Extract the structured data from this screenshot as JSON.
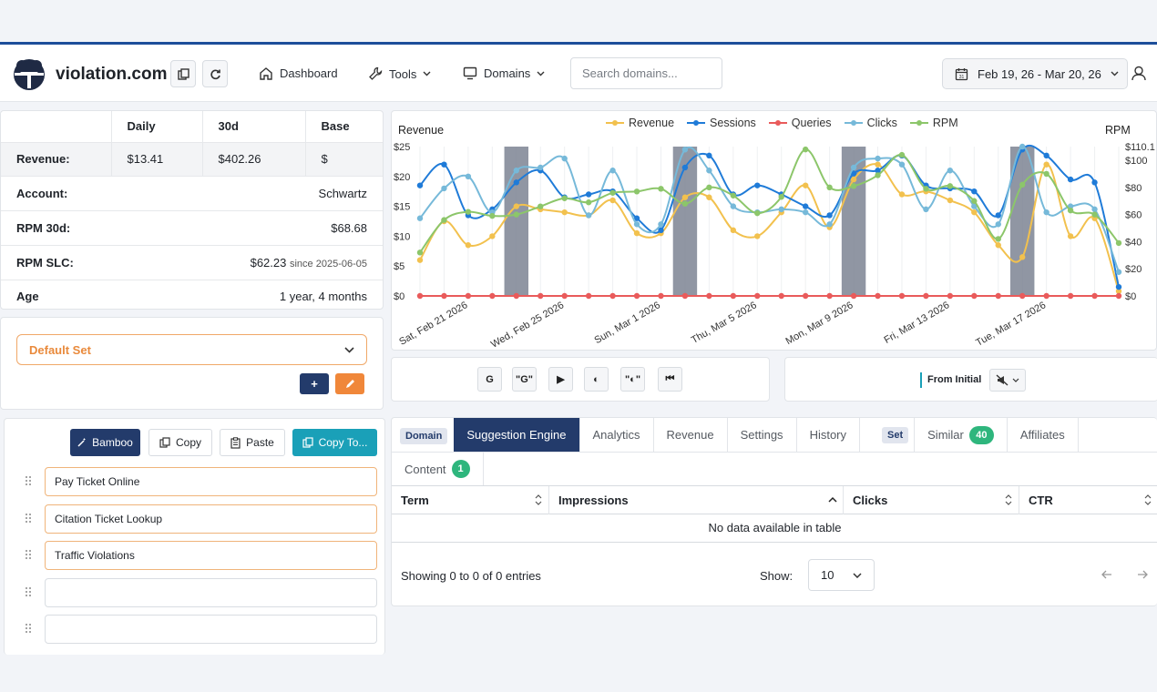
{
  "header": {
    "brand": "violation.com",
    "nav": [
      {
        "label": "Dashboard",
        "icon": "home-icon"
      },
      {
        "label": "Tools",
        "icon": "wrench-icon"
      },
      {
        "label": "Domains",
        "icon": "monitor-icon"
      }
    ],
    "search_placeholder": "Search domains...",
    "date_range": "Feb 19, 26 - Mar 20, 26"
  },
  "stats": {
    "columns": [
      "Daily",
      "30d",
      "Base"
    ],
    "revenue": {
      "label": "Revenue:",
      "daily": "$13.41",
      "d30": "$402.26",
      "base": "$"
    },
    "account": {
      "label": "Account:",
      "value": "Schwartz"
    },
    "rpm30": {
      "label": "RPM 30d:",
      "value": "$68.68"
    },
    "rpmslc": {
      "label": "RPM SLC:",
      "value": "$62.23",
      "since": "since 2025-06-05"
    },
    "age": {
      "label": "Age",
      "value": "1 year, 4 months"
    }
  },
  "set_selector": {
    "selected": "Default Set",
    "add_label": "+"
  },
  "keyword_toolbar": {
    "bamboo": "Bamboo",
    "copy": "Copy",
    "paste": "Paste",
    "copy_to": "Copy To..."
  },
  "keywords": [
    "Pay Ticket Online",
    "Citation Ticket Lookup",
    "Traffic Violations",
    "",
    ""
  ],
  "chart_data": {
    "type": "line",
    "title": "",
    "ylabel_left": "Revenue",
    "ylabel_right": "RPM",
    "y_left_ticks": [
      "$0",
      "$5",
      "$10",
      "$15",
      "$20",
      "$25"
    ],
    "y_right_ticks": [
      "$0",
      "$20",
      "$40",
      "$60",
      "$80",
      "$100",
      "$110.1"
    ],
    "ylim_left": [
      0,
      25
    ],
    "ylim_right": [
      0,
      110.1
    ],
    "x": [
      "Feb 19",
      "Feb 20",
      "Feb 21",
      "Feb 22",
      "Feb 23",
      "Feb 24",
      "Feb 25",
      "Feb 26",
      "Feb 27",
      "Feb 28",
      "Mar 1",
      "Mar 2",
      "Mar 3",
      "Mar 4",
      "Mar 5",
      "Mar 6",
      "Mar 7",
      "Mar 8",
      "Mar 9",
      "Mar 10",
      "Mar 11",
      "Mar 12",
      "Mar 13",
      "Mar 14",
      "Mar 15",
      "Mar 16",
      "Mar 17",
      "Mar 18",
      "Mar 19",
      "Mar 20"
    ],
    "x_tick_labels": [
      {
        "index": 2,
        "label": "Sat, Feb 21 2026"
      },
      {
        "index": 6,
        "label": "Wed, Feb 25 2026"
      },
      {
        "index": 10,
        "label": "Sun, Mar 1 2026"
      },
      {
        "index": 14,
        "label": "Thu, Mar 5 2026"
      },
      {
        "index": 18,
        "label": "Mon, Mar 9 2026"
      },
      {
        "index": 22,
        "label": "Fri, Mar 13 2026"
      },
      {
        "index": 26,
        "label": "Tue, Mar 17 2026"
      }
    ],
    "shaded_indices": [
      4,
      11,
      18,
      25
    ],
    "series": [
      {
        "name": "Revenue",
        "color": "#f2c14e",
        "axis": "left",
        "values": [
          6,
          12.5,
          8.5,
          10,
          15,
          14.5,
          14,
          13.5,
          16,
          10.5,
          10.5,
          16.5,
          16.5,
          11,
          10,
          14,
          18.5,
          11.5,
          19.5,
          22,
          17,
          17.5,
          16,
          14,
          8.5,
          6.5,
          22,
          10,
          13,
          0.8
        ]
      },
      {
        "name": "Sessions",
        "color": "#1f7bd8",
        "axis": "left",
        "values": [
          18.5,
          22,
          13.5,
          14.5,
          19,
          21,
          16.5,
          17,
          17.5,
          13,
          11,
          21.5,
          23.5,
          17,
          18.5,
          17,
          15,
          13.5,
          20.5,
          21,
          23.5,
          18.5,
          18,
          17.5,
          13.5,
          24.5,
          23.5,
          19.5,
          19,
          1.5
        ]
      },
      {
        "name": "Queries",
        "color": "#e95b5b",
        "axis": "left",
        "values": [
          0,
          0,
          0,
          0,
          0,
          0,
          0,
          0,
          0,
          0,
          0,
          0,
          0,
          0,
          0,
          0,
          0,
          0,
          0,
          0,
          0,
          0,
          0,
          0,
          0,
          0,
          0,
          0,
          0,
          0
        ]
      },
      {
        "name": "Clicks",
        "color": "#76b9d9",
        "axis": "left",
        "values": [
          13,
          18,
          20,
          14,
          21,
          21.5,
          23,
          13.5,
          21,
          12,
          12,
          24.5,
          21,
          15,
          14,
          14.5,
          14,
          12,
          21.5,
          23,
          22,
          14.5,
          21,
          15,
          12,
          25,
          14,
          15,
          14.5,
          4
        ]
      },
      {
        "name": "RPM",
        "color": "#8cc66a",
        "axis": "right",
        "values": [
          32,
          56,
          62,
          59,
          60,
          66,
          72,
          69,
          76,
          77,
          79,
          68,
          80,
          74,
          61,
          73,
          108,
          80,
          81,
          89,
          104,
          79,
          81,
          70,
          42,
          82,
          90,
          63,
          60,
          39
        ]
      }
    ]
  },
  "chart_tools": {
    "from_initial": "From Initial"
  },
  "tool_buttons": [
    "G",
    "\"G\"",
    "▶",
    "◐",
    "\"◐\"",
    "⏮"
  ],
  "tabs_row1": {
    "domain_tag": "Domain",
    "items": [
      "Suggestion Engine",
      "Analytics",
      "Revenue",
      "Settings",
      "History"
    ],
    "set_tag": "Set",
    "similar": "Similar",
    "similar_count": "40",
    "affiliates": "Affiliates"
  },
  "tabs_row2": {
    "content": "Content",
    "content_count": "1"
  },
  "results_table": {
    "columns": [
      "Term",
      "Impressions",
      "Clicks",
      "CTR"
    ],
    "empty": "No data available in table",
    "showing": "Showing 0 to 0 of 0 entries",
    "show_label": "Show:",
    "page_size": "10"
  },
  "colors": {
    "accent_navy": "#233b6b",
    "orange": "#f0873a",
    "teal": "#1aa0b8",
    "green": "#2eb67d"
  }
}
